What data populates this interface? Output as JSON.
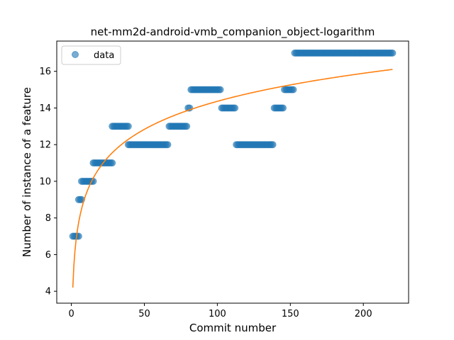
{
  "chart_data": {
    "type": "scatter",
    "title": "net-mm2d-android-vmb_companion_object-logarithm",
    "xlabel": "Commit number",
    "ylabel": "Number of instance of a feature",
    "xlim": [
      -10,
      231
    ],
    "ylim": [
      3.35,
      17.65
    ],
    "xticks": [
      0,
      50,
      100,
      150,
      200
    ],
    "yticks": [
      4,
      6,
      8,
      10,
      12,
      14,
      16
    ],
    "grid": false,
    "legend": {
      "placement": "upper-left",
      "entries": [
        "data"
      ]
    },
    "colors": {
      "data": "#1f77b4",
      "fit": "#ff7f0e"
    },
    "series": [
      {
        "name": "data",
        "style": "points",
        "segments": [
          {
            "x_from": 1,
            "x_to": 5,
            "y": 7
          },
          {
            "x_from": 5,
            "x_to": 7,
            "y": 9
          },
          {
            "x_from": 7,
            "x_to": 15,
            "y": 10
          },
          {
            "x_from": 15,
            "x_to": 28,
            "y": 11
          },
          {
            "x_from": 28,
            "x_to": 39,
            "y": 13
          },
          {
            "x_from": 39,
            "x_to": 66,
            "y": 12
          },
          {
            "x_from": 67,
            "x_to": 79,
            "y": 13
          },
          {
            "x_from": 80,
            "x_to": 81,
            "y": 14
          },
          {
            "x_from": 82,
            "x_to": 102,
            "y": 15
          },
          {
            "x_from": 103,
            "x_to": 112,
            "y": 14
          },
          {
            "x_from": 113,
            "x_to": 138,
            "y": 12
          },
          {
            "x_from": 139,
            "x_to": 145,
            "y": 14
          },
          {
            "x_from": 146,
            "x_to": 152,
            "y": 15
          },
          {
            "x_from": 153,
            "x_to": 220,
            "y": 17
          }
        ]
      },
      {
        "style": "line",
        "model": "logarithm",
        "x_range": [
          1,
          220
        ],
        "a": 4.2,
        "b": 2.207
      }
    ]
  }
}
